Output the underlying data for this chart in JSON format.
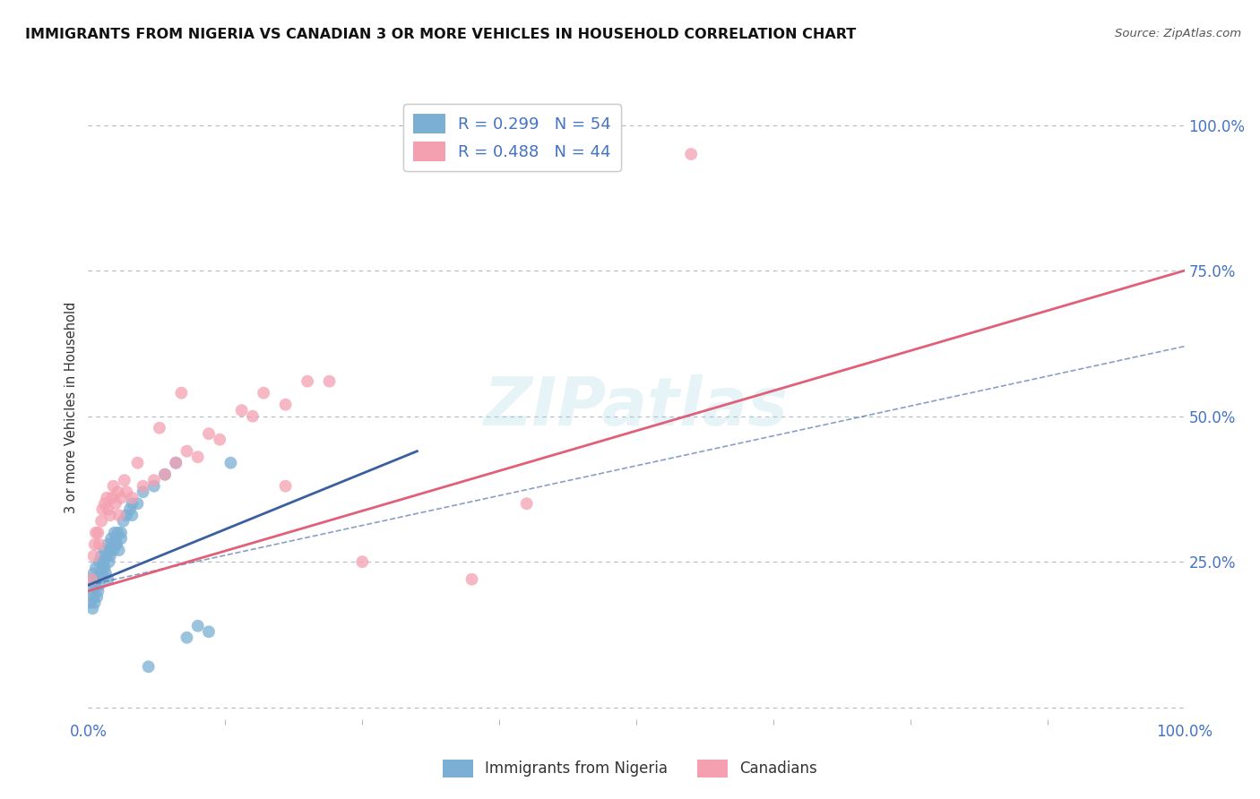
{
  "title": "IMMIGRANTS FROM NIGERIA VS CANADIAN 3 OR MORE VEHICLES IN HOUSEHOLD CORRELATION CHART",
  "source": "Source: ZipAtlas.com",
  "ylabel": "3 or more Vehicles in Household",
  "watermark": "ZIPatlas",
  "legend_r1": "R = 0.299   N = 54",
  "legend_r2": "R = 0.488   N = 44",
  "legend_label1": "Immigrants from Nigeria",
  "legend_label2": "Canadians",
  "yticklabels_right": [
    "25.0%",
    "50.0%",
    "75.0%",
    "100.0%"
  ],
  "blue_scatter_x": [
    0.2,
    0.3,
    0.4,
    0.5,
    0.5,
    0.6,
    0.7,
    0.8,
    0.9,
    1.0,
    1.1,
    1.2,
    1.3,
    1.4,
    1.5,
    1.6,
    1.7,
    1.8,
    1.9,
    2.0,
    2.1,
    2.2,
    2.3,
    2.4,
    2.5,
    2.6,
    2.7,
    2.8,
    3.0,
    3.2,
    3.5,
    3.8,
    4.0,
    4.5,
    5.0,
    6.0,
    7.0,
    8.0,
    9.0,
    10.0,
    11.0,
    13.0,
    0.4,
    0.6,
    0.8,
    1.0,
    1.2,
    1.5,
    1.8,
    2.0,
    2.5,
    3.0,
    4.0,
    5.5
  ],
  "blue_scatter_y": [
    18,
    22,
    20,
    19,
    23,
    21,
    24,
    22,
    20,
    25,
    23,
    26,
    24,
    25,
    27,
    23,
    26,
    28,
    25,
    27,
    29,
    28,
    27,
    30,
    29,
    28,
    30,
    27,
    30,
    32,
    33,
    34,
    35,
    35,
    37,
    38,
    40,
    42,
    12,
    14,
    13,
    42,
    17,
    18,
    19,
    21,
    23,
    24,
    22,
    26,
    28,
    29,
    33,
    7
  ],
  "pink_scatter_x": [
    0.3,
    0.5,
    0.7,
    1.0,
    1.2,
    1.5,
    1.8,
    2.0,
    2.2,
    2.5,
    2.8,
    3.0,
    3.5,
    4.0,
    5.0,
    6.0,
    7.0,
    8.0,
    9.0,
    10.0,
    12.0,
    15.0,
    18.0,
    22.0,
    0.6,
    0.9,
    1.3,
    1.7,
    2.3,
    2.7,
    3.3,
    4.5,
    6.5,
    8.5,
    48.0,
    55.0,
    25.0,
    40.0,
    18.0,
    35.0,
    11.0,
    14.0,
    16.0,
    20.0
  ],
  "pink_scatter_y": [
    22,
    26,
    30,
    28,
    32,
    35,
    34,
    33,
    36,
    35,
    33,
    36,
    37,
    36,
    38,
    39,
    40,
    42,
    44,
    43,
    46,
    50,
    52,
    56,
    28,
    30,
    34,
    36,
    38,
    37,
    39,
    42,
    48,
    54,
    97,
    95,
    25,
    35,
    38,
    22,
    47,
    51,
    54,
    56
  ],
  "blue_line_x0": 0,
  "blue_line_y0": 21,
  "blue_line_x1": 30,
  "blue_line_y1": 44,
  "blue_dashed_x0": 0,
  "blue_dashed_y0": 21,
  "blue_dashed_x1": 100,
  "blue_dashed_y1": 62,
  "pink_line_x0": 0,
  "pink_line_y0": 20,
  "pink_line_x1": 100,
  "pink_line_y1": 75,
  "xlim": [
    0,
    100
  ],
  "ylim": [
    -2,
    105
  ],
  "grid_y": [
    0,
    25,
    50,
    75,
    100
  ],
  "title_color": "#111111",
  "title_fontsize": 11.5,
  "axis_color": "#4472c4",
  "blue_color": "#7bafd4",
  "pink_color": "#f4a0b0",
  "blue_line_color": "#3a5fa0",
  "pink_line_color": "#e0607a",
  "background_color": "#ffffff"
}
